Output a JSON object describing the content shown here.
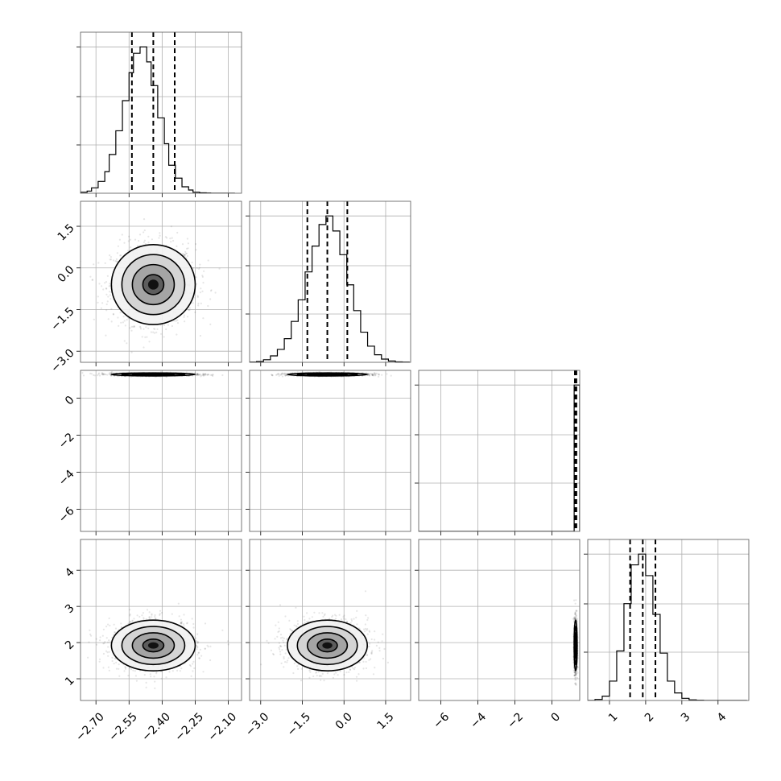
{
  "chart_data": {
    "type": "corner",
    "n_params": 4,
    "params": [
      {
        "range": [
          -2.77,
          -2.04
        ],
        "ticks": [
          -2.7,
          -2.55,
          -2.4,
          -2.25,
          -2.1
        ],
        "tick_labels": [
          "−2.70",
          "−2.55",
          "−2.40",
          "−2.25",
          "−2.10"
        ],
        "mean": -2.44,
        "sigma": 0.095,
        "quantiles": [
          -2.537,
          -2.44,
          -2.343
        ],
        "hist_bins": [
          -2.77,
          -2.74,
          -2.72,
          -2.69,
          -2.66,
          -2.64,
          -2.61,
          -2.58,
          -2.55,
          -2.53,
          -2.5,
          -2.47,
          -2.45,
          -2.42,
          -2.39,
          -2.37,
          -2.34,
          -2.31,
          -2.28,
          -2.26,
          -2.23,
          -2.2,
          -2.18,
          -2.15,
          -2.12,
          -2.1,
          -2.07
        ],
        "hist_counts": [
          5,
          10,
          25,
          55,
          100,
          180,
          290,
          430,
          560,
          650,
          680,
          610,
          500,
          350,
          230,
          130,
          70,
          30,
          15,
          5,
          2,
          1,
          0,
          0,
          0,
          0
        ]
      },
      {
        "range": [
          -3.4,
          2.4
        ],
        "ticks": [
          -3.0,
          -1.5,
          0.0,
          1.5
        ],
        "tick_labels": [
          "−3.0",
          "−1.5",
          "0.0",
          "1.5"
        ],
        "mean": -0.6,
        "sigma": 0.72,
        "quantiles": [
          -1.32,
          -0.6,
          0.12
        ],
        "hist_bins": [
          -3.4,
          -3.15,
          -2.9,
          -2.65,
          -2.4,
          -2.15,
          -1.9,
          -1.65,
          -1.4,
          -1.15,
          -0.9,
          -0.65,
          -0.4,
          -0.15,
          0.1,
          0.35,
          0.6,
          0.85,
          1.1,
          1.35,
          1.6,
          1.85,
          2.1,
          2.35
        ],
        "hist_counts": [
          1,
          4,
          12,
          30,
          60,
          110,
          190,
          290,
          420,
          540,
          640,
          680,
          610,
          500,
          360,
          240,
          140,
          75,
          35,
          15,
          6,
          2,
          1
        ]
      },
      {
        "range": [
          -7.2,
          1.5
        ],
        "ticks": [
          -6,
          -4,
          -2,
          0
        ],
        "tick_labels": [
          "−6",
          "−4",
          "−2",
          "0"
        ],
        "mean": 1.28,
        "sigma": 0.04,
        "quantiles": [
          1.24,
          1.28,
          1.32
        ],
        "hist_bins": [
          -7.2,
          -6.9,
          -6.6,
          -6.3,
          -6.0,
          -5.7,
          -5.4,
          -5.1,
          -4.8,
          -4.5,
          -4.2,
          -3.9,
          -3.6,
          -3.3,
          -3.0,
          -2.7,
          -2.4,
          -2.1,
          -1.8,
          -1.5,
          -1.2,
          -0.9,
          -0.6,
          -0.3,
          0.0,
          0.3,
          0.6,
          0.9,
          1.2,
          1.5
        ],
        "hist_counts": [
          0,
          0,
          0,
          0,
          0,
          0,
          0,
          0,
          0,
          0,
          0,
          0,
          0,
          0,
          0,
          0,
          0,
          0,
          0,
          0,
          0,
          0,
          0,
          0,
          0,
          0,
          0,
          0,
          680
        ]
      },
      {
        "range": [
          0.4,
          4.85
        ],
        "ticks": [
          1,
          2,
          3,
          4
        ],
        "tick_labels": [
          "1",
          "2",
          "3",
          "4"
        ],
        "mean": 1.92,
        "sigma": 0.35,
        "quantiles": [
          1.57,
          1.92,
          2.27
        ],
        "hist_bins": [
          0.4,
          0.6,
          0.8,
          1.0,
          1.2,
          1.4,
          1.6,
          1.8,
          2.0,
          2.2,
          2.4,
          2.6,
          2.8,
          3.0,
          3.2,
          3.4,
          3.6,
          3.8,
          4.0,
          4.2,
          4.4,
          4.6,
          4.8
        ],
        "hist_counts": [
          0,
          5,
          20,
          90,
          230,
          450,
          630,
          680,
          580,
          400,
          220,
          90,
          35,
          10,
          3,
          1,
          0,
          0,
          0,
          0,
          0,
          0
        ]
      }
    ],
    "grid": true,
    "scatter_points_per_panel": 1400,
    "contour_levels_sigma": [
      0.5,
      1.0,
      1.5,
      2.0
    ]
  }
}
